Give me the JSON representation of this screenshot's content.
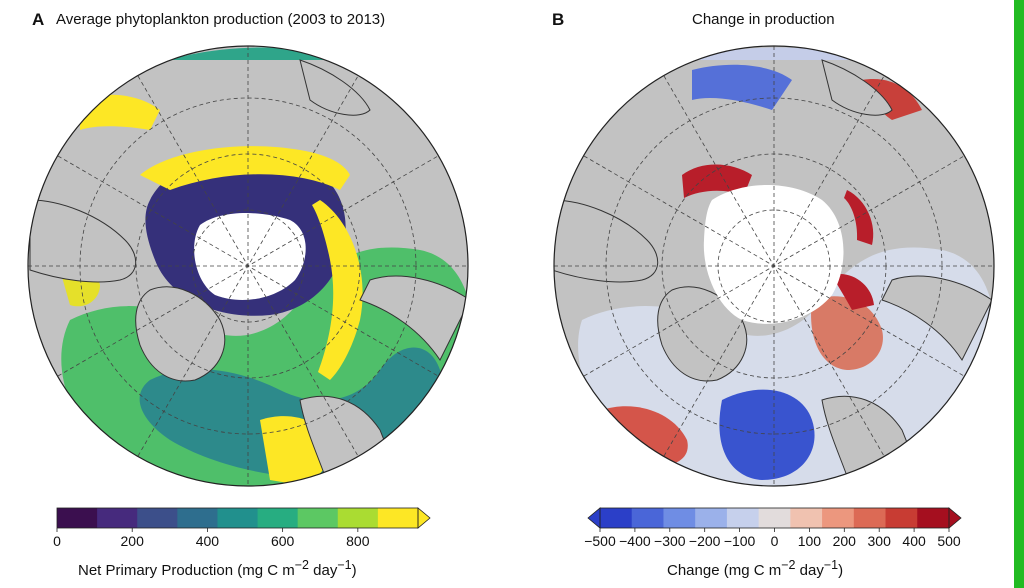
{
  "panel_a": {
    "letter": "A",
    "title": "Average phytoplankton production (2003 to 2013)",
    "colorbar": {
      "ticks": [
        "0",
        "200",
        "400",
        "600",
        "800"
      ],
      "label": "Net Primary Production (mg C m",
      "label_exp1": "−2",
      "label_mid": " day",
      "label_exp2": "−1",
      "label_end": ")",
      "colors": [
        "#3b0f4f",
        "#462a7d",
        "#3c4f8a",
        "#2e6e8e",
        "#21908d",
        "#27ad81",
        "#5cc863",
        "#aadc32",
        "#fde725"
      ]
    }
  },
  "panel_b": {
    "letter": "B",
    "title": "Change in production",
    "colorbar": {
      "ticks": [
        "−500",
        "−400",
        "−300",
        "−200",
        "−100",
        "0",
        "100",
        "200",
        "300",
        "400",
        "500"
      ],
      "label": "Change (mg C m",
      "label_exp1": "−2",
      "label_mid": " day",
      "label_exp2": "−1",
      "label_end": ")",
      "colors": [
        "#2b3fc8",
        "#4a66d8",
        "#6f8de4",
        "#9bb1ea",
        "#c6d0ec",
        "#e2dcdc",
        "#f0c2b0",
        "#ec977e",
        "#dc6a55",
        "#c83c33",
        "#a50f1f"
      ]
    }
  },
  "colors": {
    "land": "#c2c2c2",
    "ice": "#ffffff",
    "grid": "#444444",
    "coast": "#333333"
  }
}
